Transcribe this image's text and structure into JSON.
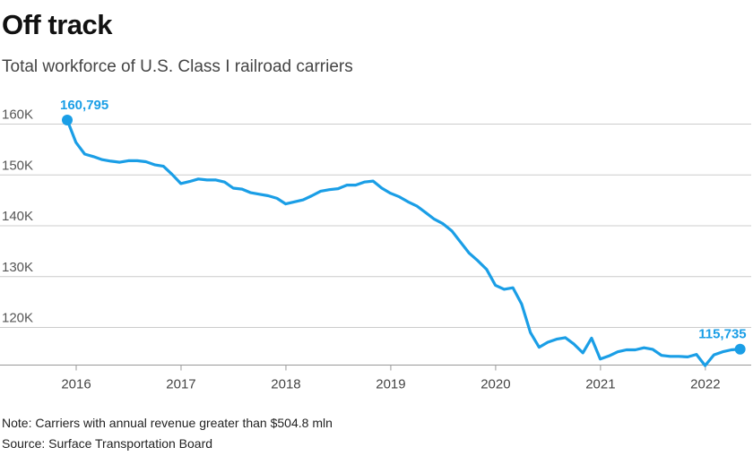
{
  "header": {
    "title": "Off track",
    "subtitle": "Total workforce of U.S. Class I railroad carriers"
  },
  "footer": {
    "note": "Note: Carriers with annual revenue greater than $504.8 mln",
    "source": "Source: Surface Transportation Board"
  },
  "colors": {
    "line": "#1a9ee6",
    "grid": "#cccccc",
    "axis": "#999999"
  },
  "chart_data": {
    "type": "line",
    "title": "Off track",
    "subtitle": "Total workforce of U.S. Class I railroad carriers",
    "xlabel": "",
    "ylabel": "",
    "xlim": [
      2016.0,
      2022.42
    ],
    "ylim": [
      110000,
      162000
    ],
    "x_ticks": [
      {
        "value": 2016,
        "label": "2016"
      },
      {
        "value": 2017,
        "label": "2017"
      },
      {
        "value": 2018,
        "label": "2018"
      },
      {
        "value": 2019,
        "label": "2019"
      },
      {
        "value": 2020,
        "label": "2020"
      },
      {
        "value": 2021,
        "label": "2021"
      },
      {
        "value": 2022,
        "label": "2022"
      }
    ],
    "y_ticks": [
      {
        "value": 120000,
        "label": "120K"
      },
      {
        "value": 130000,
        "label": "130K"
      },
      {
        "value": 140000,
        "label": "140K"
      },
      {
        "value": 150000,
        "label": "150K"
      },
      {
        "value": 160000,
        "label": "160K"
      }
    ],
    "grid": true,
    "series": [
      {
        "name": "Total workforce",
        "x": [
          2016.0,
          2016.083,
          2016.167,
          2016.25,
          2016.333,
          2016.417,
          2016.5,
          2016.583,
          2016.667,
          2016.75,
          2016.833,
          2016.917,
          2017.0,
          2017.083,
          2017.167,
          2017.25,
          2017.333,
          2017.417,
          2017.5,
          2017.583,
          2017.667,
          2017.75,
          2017.833,
          2017.917,
          2018.0,
          2018.083,
          2018.167,
          2018.25,
          2018.333,
          2018.417,
          2018.5,
          2018.583,
          2018.667,
          2018.75,
          2018.833,
          2018.917,
          2019.0,
          2019.083,
          2019.167,
          2019.25,
          2019.333,
          2019.417,
          2019.5,
          2019.583,
          2019.667,
          2019.75,
          2019.833,
          2019.917,
          2020.0,
          2020.083,
          2020.167,
          2020.25,
          2020.333,
          2020.417,
          2020.5,
          2020.583,
          2020.667,
          2020.75,
          2020.833,
          2020.917,
          2021.0,
          2021.083,
          2021.167,
          2021.25,
          2021.333,
          2021.417,
          2021.5,
          2021.583,
          2021.667,
          2021.75,
          2021.833,
          2021.917,
          2022.0,
          2022.083,
          2022.167,
          2022.25,
          2022.333,
          2022.417
        ],
        "values": [
          160795,
          156400,
          154100,
          153600,
          153000,
          152700,
          152500,
          152800,
          152800,
          152600,
          152000,
          151700,
          150100,
          148300,
          148700,
          149200,
          149000,
          149000,
          148600,
          147400,
          147200,
          146500,
          146200,
          145900,
          145400,
          144300,
          144700,
          145100,
          145900,
          146800,
          147100,
          147300,
          148000,
          148000,
          148600,
          148800,
          147400,
          146400,
          145700,
          144700,
          143900,
          142600,
          141300,
          140400,
          139000,
          136800,
          134600,
          133100,
          131400,
          128300,
          127500,
          127800,
          124600,
          119000,
          116100,
          117100,
          117700,
          118000,
          116700,
          115000,
          117900,
          113800,
          114400,
          115200,
          115600,
          115600,
          116000,
          115700,
          114500,
          114300,
          114300,
          114200,
          114700,
          112500,
          114600,
          115200,
          115600,
          115735
        ]
      }
    ],
    "annotations": [
      {
        "label": "160,795",
        "x": 2016.0,
        "value": 160795
      },
      {
        "label": "115,735",
        "x": 2022.417,
        "value": 115735
      }
    ]
  }
}
